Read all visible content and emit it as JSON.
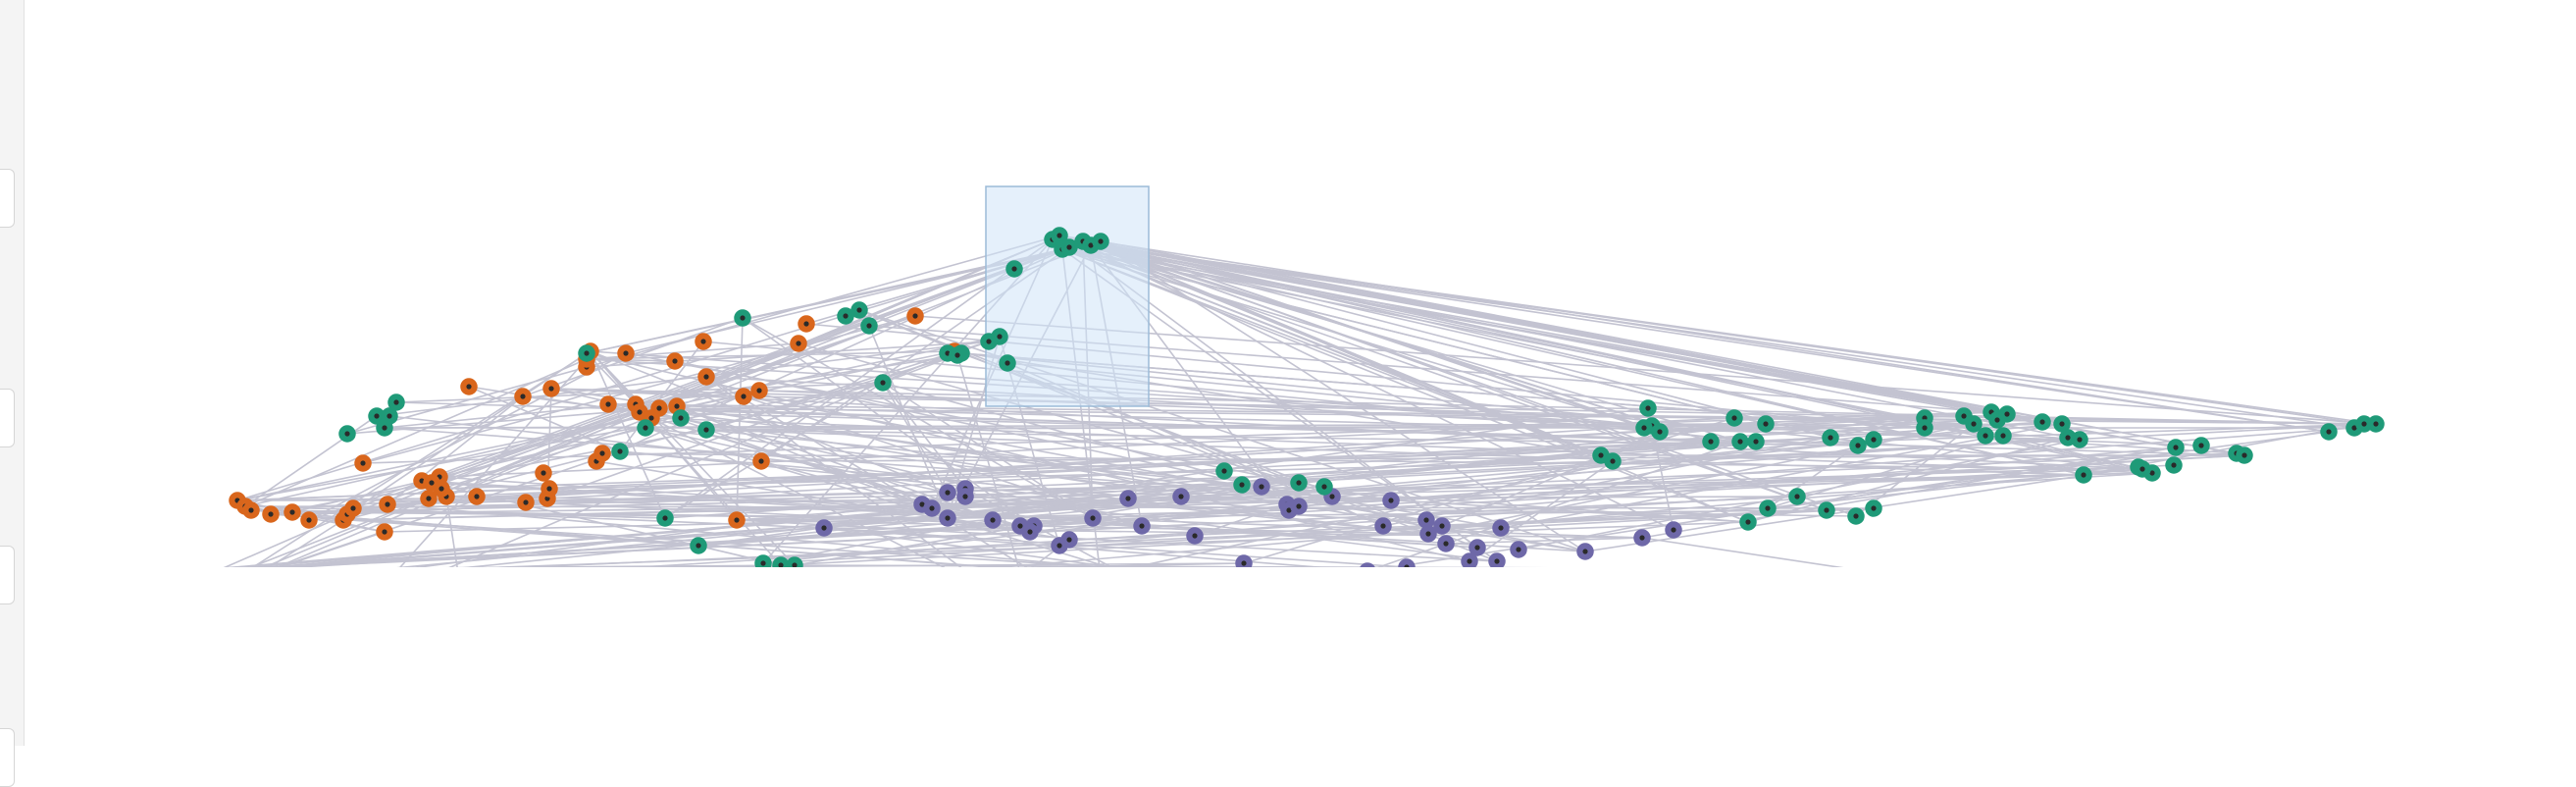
{
  "colors": {
    "orange": "#d9661c",
    "green": "#1f9a78",
    "purple": "#6e68a8",
    "edge": "#c3c3d1",
    "panel": "#f4f4f4",
    "selection_fill": "#cfe3f8",
    "selection_stroke": "#9cbbd8"
  },
  "panel": {
    "tab_icon": "panel-tab"
  },
  "graph": {
    "selection_state": "brush-active",
    "visible_node_groups": [
      "orange",
      "green",
      "purple"
    ]
  }
}
